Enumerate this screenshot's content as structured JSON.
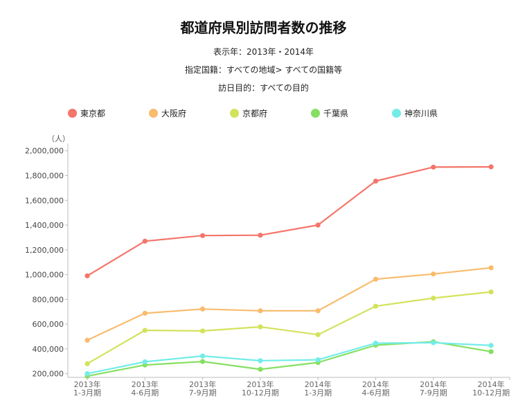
{
  "header": {
    "title": "都道府県別訪問者数の推移",
    "display_years": "表示年：2013年・2014年",
    "nationality": "指定国籍：すべての地域> すべての国籍等",
    "purpose": "訪日目的：すべての目的"
  },
  "chart_data": {
    "type": "line",
    "ylabel": "（人）",
    "ylim": [
      170000,
      2060000
    ],
    "y_ticks": [
      200000,
      400000,
      600000,
      800000,
      1000000,
      1200000,
      1400000,
      1600000,
      1800000,
      2000000
    ],
    "y_tick_labels": [
      "200,000",
      "400,000",
      "600,000",
      "800,000",
      "1,000,000",
      "1,200,000",
      "1,400,000",
      "1,600,000",
      "1,800,000",
      "2,000,000"
    ],
    "categories": [
      [
        "2013年",
        "1-3月期"
      ],
      [
        "2013年",
        "4-6月期"
      ],
      [
        "2013年",
        "7-9月期"
      ],
      [
        "2013年",
        "10-12月期"
      ],
      [
        "2014年",
        "1-3月期"
      ],
      [
        "2014年",
        "4-6月期"
      ],
      [
        "2014年",
        "7-9月期"
      ],
      [
        "2014年",
        "10-12月期"
      ]
    ],
    "legend_position": "top",
    "grid": false,
    "series": [
      {
        "name": "東京都",
        "color": "#f4756a",
        "values": [
          990000,
          1270000,
          1315000,
          1318000,
          1400000,
          1755000,
          1868000,
          1870000
        ]
      },
      {
        "name": "大阪府",
        "color": "#f9bb6c",
        "values": [
          470000,
          688000,
          722000,
          708000,
          708000,
          963000,
          1005000,
          1055000
        ]
      },
      {
        "name": "京都府",
        "color": "#d3e25b",
        "values": [
          280000,
          550000,
          545000,
          578000,
          515000,
          745000,
          810000,
          860000
        ]
      },
      {
        "name": "千葉県",
        "color": "#86df62",
        "values": [
          180000,
          270000,
          298000,
          235000,
          290000,
          430000,
          458000,
          378000
        ]
      },
      {
        "name": "神奈川県",
        "color": "#73ece8",
        "values": [
          200000,
          296000,
          343000,
          305000,
          312000,
          446000,
          450000,
          428000
        ]
      }
    ]
  }
}
